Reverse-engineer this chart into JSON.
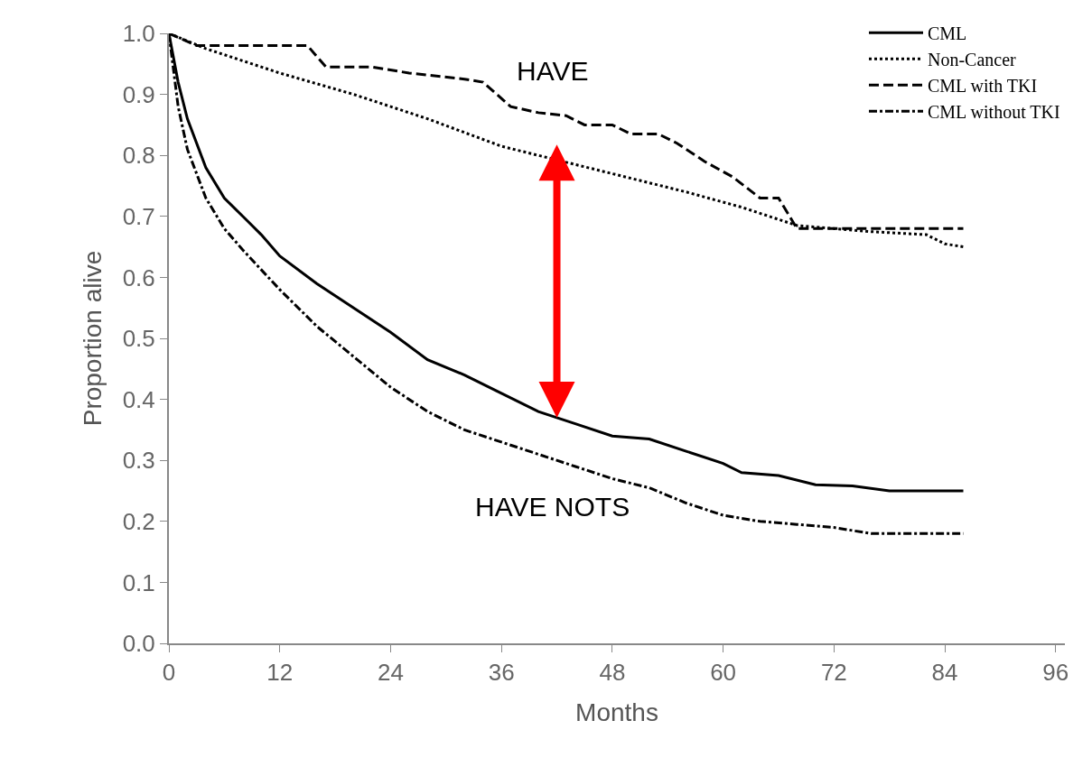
{
  "chart_data": {
    "type": "line",
    "xlabel": "Months",
    "ylabel": "Proportion alive",
    "xlim": [
      0,
      97
    ],
    "xticks": [
      0,
      12,
      24,
      36,
      48,
      60,
      72,
      84,
      96
    ],
    "ylim": [
      0,
      1.0
    ],
    "yticks": [
      {
        "value": 0,
        "label": "0.0"
      },
      0.1,
      0.2,
      0.3,
      0.4,
      0.5,
      0.6,
      0.7,
      0.8,
      0.9,
      {
        "value": 1,
        "label": "1.0"
      }
    ],
    "legend": "top right",
    "marker": "none",
    "series": [
      {
        "name": "CML",
        "color": "#000000",
        "line_style": "solid",
        "x": [
          0,
          1,
          2,
          4,
          6,
          8,
          10,
          12,
          16,
          20,
          24,
          28,
          32,
          36,
          40,
          44,
          48,
          52,
          56,
          60,
          62,
          66,
          70,
          74,
          78,
          86
        ],
        "values": [
          1.0,
          0.92,
          0.86,
          0.78,
          0.73,
          0.7,
          0.67,
          0.635,
          0.59,
          0.55,
          0.51,
          0.465,
          0.44,
          0.41,
          0.38,
          0.36,
          0.34,
          0.335,
          0.315,
          0.295,
          0.28,
          0.275,
          0.26,
          0.258,
          0.25,
          0.25
        ]
      },
      {
        "name": "Non-Cancer",
        "color": "#000000",
        "line_style": "dotted",
        "x": [
          0,
          4,
          12,
          20,
          28,
          36,
          48,
          56,
          62,
          68,
          76,
          82,
          84,
          86
        ],
        "values": [
          1.0,
          0.975,
          0.935,
          0.9,
          0.86,
          0.815,
          0.77,
          0.74,
          0.715,
          0.685,
          0.675,
          0.67,
          0.655,
          0.65
        ]
      },
      {
        "name": "CML with TKI",
        "color": "#000000",
        "line_style": "dashed",
        "x": [
          0,
          3,
          15,
          17,
          22,
          26,
          32,
          34,
          37,
          40,
          43,
          45,
          48,
          50,
          53,
          55,
          58,
          61,
          64,
          66,
          68,
          86
        ],
        "values": [
          1.0,
          0.98,
          0.98,
          0.945,
          0.945,
          0.935,
          0.925,
          0.92,
          0.88,
          0.87,
          0.865,
          0.85,
          0.85,
          0.835,
          0.835,
          0.82,
          0.79,
          0.765,
          0.73,
          0.73,
          0.68,
          0.68
        ]
      },
      {
        "name": "CML without TKI",
        "color": "#000000",
        "line_style": "dashdot",
        "x": [
          0,
          1,
          2,
          4,
          6,
          8,
          12,
          16,
          20,
          24,
          28,
          32,
          36,
          40,
          44,
          48,
          52,
          56,
          60,
          64,
          68,
          72,
          76,
          80,
          86
        ],
        "values": [
          1.0,
          0.88,
          0.81,
          0.73,
          0.68,
          0.645,
          0.58,
          0.52,
          0.47,
          0.42,
          0.38,
          0.35,
          0.33,
          0.31,
          0.29,
          0.27,
          0.255,
          0.23,
          0.21,
          0.2,
          0.195,
          0.19,
          0.18,
          0.18,
          0.18
        ]
      }
    ],
    "annotations": [
      "HAVE",
      "HAVE NOTS"
    ]
  }
}
